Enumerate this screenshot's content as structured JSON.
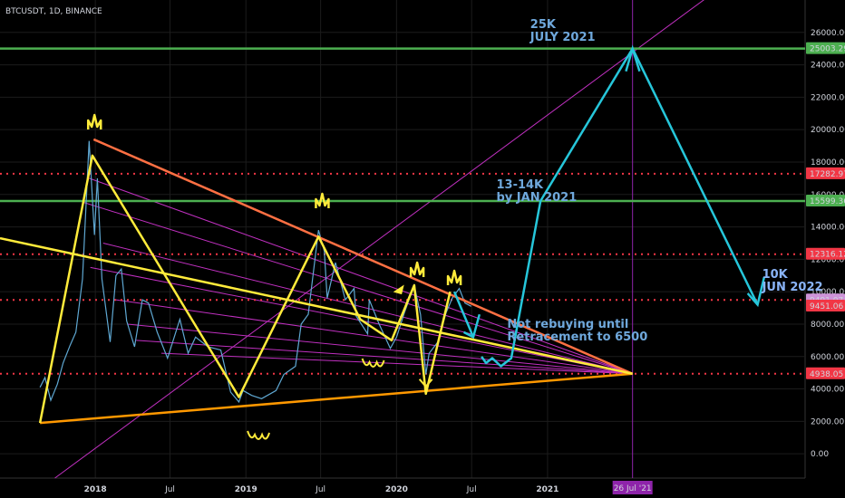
{
  "symbol_header": "BTCUSDT, 1D, BINANCE",
  "colors": {
    "background": "#000000",
    "axis_text": "#d1d4dc",
    "grid": "#1c1c1c",
    "price_line": "#5fa8d3",
    "green_level": "#4caf50",
    "red_dotted": "#f23645",
    "yellow": "#ffeb3b",
    "orange": "#ff9800",
    "magenta": "#c030c0",
    "cyan": "#26c6da",
    "annotation_text": "#6fa8dc",
    "white_annotation": "#8ab4f8"
  },
  "chart_data": {
    "type": "line",
    "title": "BTCUSDT, 1D, BINANCE",
    "xlabel": "",
    "ylabel": "",
    "x_tick_labels": [
      "2018",
      "Jul",
      "2019",
      "Jul",
      "2020",
      "Jul",
      "2021"
    ],
    "x_tick_dates": [
      "2018-01-01",
      "2018-07-01",
      "2019-01-01",
      "2019-07-01",
      "2020-01-01",
      "2020-07-01",
      "2021-01-01"
    ],
    "xlim": [
      "2017-05-15",
      "2022-09-15"
    ],
    "y_tick_labels": [
      "0.00",
      "2000.00",
      "4000.00",
      "6000.00",
      "8000.00",
      "10000.00",
      "12000.00",
      "14000.00",
      "16000.00",
      "18000.00",
      "20000.00",
      "22000.00",
      "24000.00",
      "26000.00"
    ],
    "y_ticks": [
      0,
      2000,
      4000,
      6000,
      8000,
      10000,
      12000,
      14000,
      16000,
      18000,
      20000,
      22000,
      24000,
      26000
    ],
    "ylim": [
      -1500,
      28000
    ],
    "grid": true,
    "price_series": {
      "name": "BTCUSDT",
      "points": [
        [
          "2017-08-20",
          4100
        ],
        [
          "2017-09-01",
          4700
        ],
        [
          "2017-09-15",
          3300
        ],
        [
          "2017-10-01",
          4300
        ],
        [
          "2017-10-15",
          5600
        ],
        [
          "2017-11-01",
          6700
        ],
        [
          "2017-11-15",
          7500
        ],
        [
          "2017-12-01",
          10800
        ],
        [
          "2017-12-17",
          19300
        ],
        [
          "2017-12-30",
          13500
        ],
        [
          "2018-01-06",
          17000
        ],
        [
          "2018-01-17",
          10800
        ],
        [
          "2018-02-06",
          6900
        ],
        [
          "2018-02-20",
          11000
        ],
        [
          "2018-03-05",
          11400
        ],
        [
          "2018-03-18",
          8200
        ],
        [
          "2018-04-06",
          6600
        ],
        [
          "2018-04-25",
          9500
        ],
        [
          "2018-05-10",
          9300
        ],
        [
          "2018-05-31",
          7500
        ],
        [
          "2018-06-25",
          5900
        ],
        [
          "2018-07-25",
          8300
        ],
        [
          "2018-08-14",
          6200
        ],
        [
          "2018-09-01",
          7200
        ],
        [
          "2018-10-01",
          6600
        ],
        [
          "2018-11-01",
          6400
        ],
        [
          "2018-11-25",
          3800
        ],
        [
          "2018-12-15",
          3200
        ],
        [
          "2018-12-25",
          3900
        ],
        [
          "2019-01-15",
          3600
        ],
        [
          "2019-02-08",
          3400
        ],
        [
          "2019-03-15",
          3900
        ],
        [
          "2019-04-03",
          4900
        ],
        [
          "2019-05-01",
          5400
        ],
        [
          "2019-05-15",
          8000
        ],
        [
          "2019-06-01",
          8600
        ],
        [
          "2019-06-26",
          13800
        ],
        [
          "2019-07-10",
          12500
        ],
        [
          "2019-07-17",
          9600
        ],
        [
          "2019-08-06",
          11800
        ],
        [
          "2019-08-30",
          9500
        ],
        [
          "2019-09-20",
          10200
        ],
        [
          "2019-09-25",
          8500
        ],
        [
          "2019-10-23",
          7400
        ],
        [
          "2019-10-27",
          9500
        ],
        [
          "2019-11-20",
          8000
        ],
        [
          "2019-12-17",
          6500
        ],
        [
          "2020-01-01",
          7200
        ],
        [
          "2020-01-20",
          8700
        ],
        [
          "2020-02-13",
          10400
        ],
        [
          "2020-02-28",
          8600
        ],
        [
          "2020-03-12",
          4900
        ],
        [
          "2020-03-20",
          6200
        ],
        [
          "2020-04-10",
          6900
        ],
        [
          "2020-04-30",
          8700
        ],
        [
          "2020-05-15",
          9600
        ],
        [
          "2020-06-01",
          10200
        ],
        [
          "2020-06-15",
          9300
        ],
        [
          "2020-06-30",
          9100
        ]
      ]
    },
    "horizontal_levels": [
      {
        "label": "25003.29",
        "value": 25003.29,
        "style": "green-solid"
      },
      {
        "label": "17282.97",
        "value": 17282.97,
        "style": "red-dotted"
      },
      {
        "label": "15599.36",
        "value": 15599.36,
        "style": "green-solid"
      },
      {
        "label": "12316.12",
        "value": 12316.12,
        "style": "red-dotted"
      },
      {
        "label": "9491.07",
        "value": 9491.07,
        "style": "red-dotted"
      },
      {
        "label": "9451.06",
        "value": 9451.06,
        "style": "red-price-tag"
      },
      {
        "label": "4938.05",
        "value": 4938.05,
        "style": "red-dotted"
      }
    ],
    "vertical_marker": {
      "label": "26 Jul '21",
      "date": "2021-07-26"
    },
    "annotations": [
      {
        "id": "target_25k",
        "lines": [
          "25K",
          "JULY 2021"
        ]
      },
      {
        "id": "target_13k",
        "lines": [
          "13-14K",
          "by JAN 2021"
        ]
      },
      {
        "id": "target_10k",
        "lines": [
          "10K",
          "JUN 2022"
        ]
      },
      {
        "id": "note_rebuy",
        "lines": [
          "Not rebuying until",
          "Retracement to 6500"
        ]
      }
    ]
  }
}
